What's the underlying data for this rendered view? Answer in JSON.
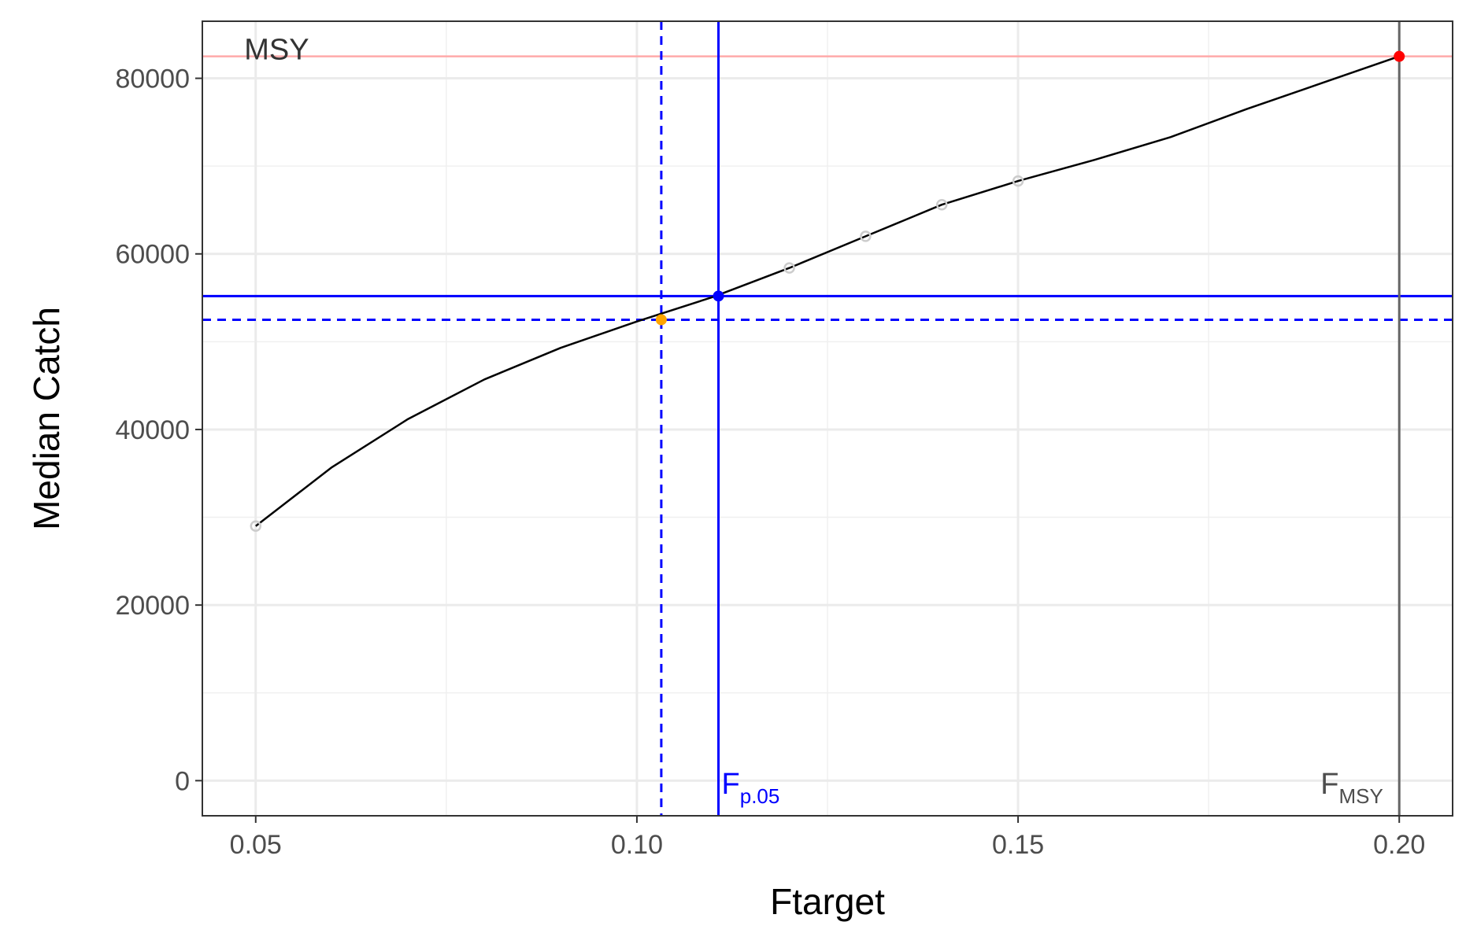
{
  "chart_data": {
    "type": "line",
    "title": "",
    "xlabel": "Ftarget",
    "ylabel": "Median Catch",
    "xlim": [
      0.043,
      0.207
    ],
    "ylim": [
      -4000,
      86500
    ],
    "x_ticks": [
      0.05,
      0.1,
      0.15,
      0.2
    ],
    "x_tick_labels": [
      "0.05",
      "0.10",
      "0.15",
      "0.20"
    ],
    "x_minor_ticks": [
      0.075,
      0.125,
      0.175
    ],
    "y_ticks": [
      0,
      20000,
      40000,
      60000,
      80000
    ],
    "y_tick_labels": [
      "0",
      "20000",
      "40000",
      "60000",
      "80000"
    ],
    "y_minor_ticks": [
      10000,
      30000,
      50000,
      70000
    ],
    "grid": true,
    "legend": "none",
    "series": [
      {
        "type": "line",
        "color": "#000000",
        "x": [
          0.05,
          0.06,
          0.07,
          0.08,
          0.09,
          0.1,
          0.11,
          0.12,
          0.13,
          0.14,
          0.15,
          0.16,
          0.17,
          0.18,
          0.19,
          0.2
        ],
        "y": [
          29000,
          35700,
          41200,
          45700,
          49300,
          52300,
          55100,
          58400,
          62000,
          65600,
          68300,
          70700,
          73300,
          76500,
          79500,
          82500
        ]
      },
      {
        "type": "points",
        "color": "#cccccc",
        "x": [
          0.05,
          0.12,
          0.13,
          0.14,
          0.15
        ],
        "y": [
          29000,
          58400,
          62000,
          65600,
          68300
        ]
      }
    ],
    "reference_lines": [
      {
        "orientation": "horizontal",
        "value": 82500,
        "color": "#ffaaaa",
        "style": "solid"
      },
      {
        "orientation": "horizontal",
        "value": 55200,
        "color": "#0000ff",
        "style": "solid"
      },
      {
        "orientation": "horizontal",
        "value": 52500,
        "color": "#0000ff",
        "style": "dashed"
      },
      {
        "orientation": "vertical",
        "value": 0.1032,
        "color": "#0000ff",
        "style": "dashed"
      },
      {
        "orientation": "vertical",
        "value": 0.1107,
        "color": "#0000ff",
        "style": "solid"
      },
      {
        "orientation": "vertical",
        "value": 0.2,
        "color": "#666666",
        "style": "solid"
      }
    ],
    "highlight_points": [
      {
        "x": 0.2,
        "y": 82500,
        "color": "#ff0000"
      },
      {
        "x": 0.1107,
        "y": 55200,
        "color": "#0000ff"
      },
      {
        "x": 0.1032,
        "y": 52500,
        "color": "#ffa500"
      }
    ],
    "annotations": {
      "msy": {
        "text": "MSY",
        "color": "#333333"
      },
      "fp05": {
        "main": "F",
        "sub": "p.05",
        "color": "#0000ff"
      },
      "fmsy": {
        "main": "F",
        "sub": "MSY",
        "color": "#4d4d4d"
      }
    }
  }
}
